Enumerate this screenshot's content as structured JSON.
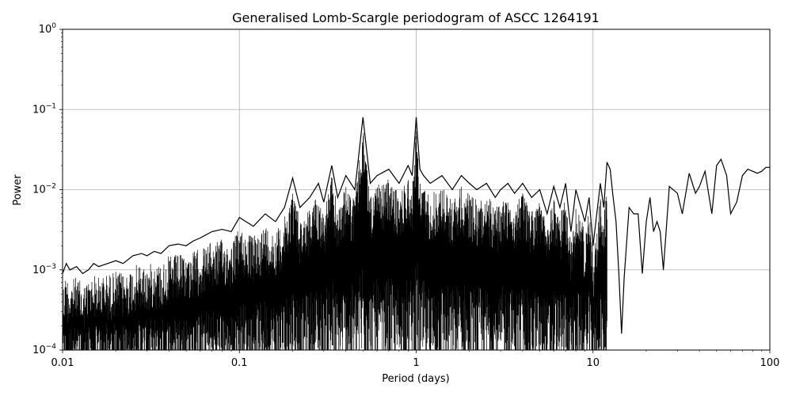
{
  "chart_data": {
    "type": "line",
    "title": "Generalised Lomb-Scargle periodogram of ASCC 1264191",
    "xlabel": "Period (days)",
    "ylabel": "Power",
    "xscale": "log",
    "yscale": "log",
    "xlim": [
      0.01,
      100
    ],
    "ylim": [
      0.0001,
      1
    ],
    "grid": true,
    "line_color": "#000000",
    "x_ticks": [
      {
        "value": 0.01,
        "label": "0.01"
      },
      {
        "value": 0.1,
        "label": "0.1"
      },
      {
        "value": 1,
        "label": "1"
      },
      {
        "value": 10,
        "label": "10"
      },
      {
        "value": 100,
        "label": "100"
      }
    ],
    "y_ticks": [
      {
        "value": 0.0001,
        "base": "10",
        "exp": "−4"
      },
      {
        "value": 0.001,
        "base": "10",
        "exp": "−3"
      },
      {
        "value": 0.01,
        "base": "10",
        "exp": "−2"
      },
      {
        "value": 0.1,
        "base": "10",
        "exp": "−1"
      },
      {
        "value": 1,
        "base": "10",
        "exp": "0"
      }
    ],
    "series": [
      {
        "x": [
          0.01,
          0.0105,
          0.011,
          0.012,
          0.013,
          0.014,
          0.015,
          0.016,
          0.018,
          0.02,
          0.022,
          0.025,
          0.028,
          0.03,
          0.033,
          0.036,
          0.04,
          0.045,
          0.05,
          0.055,
          0.06,
          0.07,
          0.08,
          0.09,
          0.1,
          0.12,
          0.14,
          0.16,
          0.18,
          0.2,
          0.22,
          0.25,
          0.28,
          0.3,
          0.333,
          0.36,
          0.4,
          0.45,
          0.5,
          0.55,
          0.6,
          0.7,
          0.8,
          0.9,
          0.95,
          1.0,
          1.05,
          1.1,
          1.2,
          1.4,
          1.6,
          1.8,
          2.0,
          2.2,
          2.5,
          2.8,
          3.0,
          3.3,
          3.6,
          4.0,
          4.5,
          5.0,
          5.5,
          6.0,
          6.5,
          7.0,
          7.5,
          8.0,
          9.0,
          9.5,
          10.0,
          11.0,
          11.5,
          12.0,
          12.5,
          13.0,
          13.5,
          14.0,
          14.5,
          15.0,
          16.0,
          17.0,
          18.0,
          19.0,
          20.0,
          21.0,
          22.0,
          23.0,
          24.0,
          25.0,
          27.0,
          30.0,
          32.0,
          35.0,
          38.0,
          40.0,
          43.0,
          47.0,
          50.0,
          53.0,
          57.0,
          60.0,
          65.0,
          70.0,
          75.0,
          80.0,
          85.0,
          90.0,
          95.0,
          100.0
        ],
        "y": [
          0.0009,
          0.0012,
          0.001,
          0.0011,
          0.0009,
          0.001,
          0.0012,
          0.0011,
          0.0012,
          0.0013,
          0.0012,
          0.0015,
          0.0016,
          0.0015,
          0.0017,
          0.0016,
          0.002,
          0.0021,
          0.002,
          0.0023,
          0.0025,
          0.003,
          0.0032,
          0.003,
          0.0045,
          0.0035,
          0.005,
          0.004,
          0.006,
          0.014,
          0.006,
          0.008,
          0.012,
          0.007,
          0.02,
          0.008,
          0.015,
          0.01,
          0.08,
          0.012,
          0.015,
          0.018,
          0.012,
          0.02,
          0.015,
          0.08,
          0.018,
          0.015,
          0.012,
          0.015,
          0.01,
          0.015,
          0.012,
          0.01,
          0.012,
          0.008,
          0.01,
          0.012,
          0.009,
          0.012,
          0.008,
          0.01,
          0.005,
          0.011,
          0.006,
          0.012,
          0.003,
          0.01,
          0.004,
          0.008,
          0.002,
          0.012,
          0.006,
          0.022,
          0.018,
          0.008,
          0.004,
          0.0009,
          0.00016,
          0.0008,
          0.006,
          0.005,
          0.005,
          0.0009,
          0.004,
          0.008,
          0.003,
          0.004,
          0.003,
          0.001,
          0.011,
          0.009,
          0.005,
          0.016,
          0.009,
          0.011,
          0.017,
          0.005,
          0.02,
          0.024,
          0.015,
          0.005,
          0.007,
          0.015,
          0.018,
          0.017,
          0.016,
          0.017,
          0.019,
          0.019
        ]
      }
    ]
  }
}
